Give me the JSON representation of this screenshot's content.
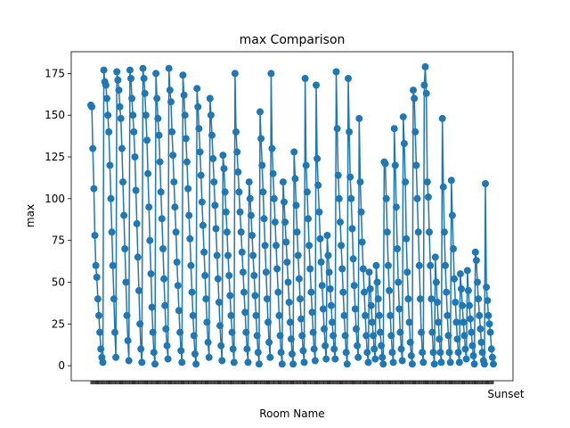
{
  "chart_data": {
    "type": "line",
    "title": "max Comparison",
    "xlabel": "Room Name",
    "ylabel": "max",
    "ylim": [
      -9,
      188
    ],
    "yticks": [
      0,
      25,
      50,
      75,
      100,
      125,
      150,
      175
    ],
    "grid": false,
    "legend": "none",
    "color": "#1f77b4",
    "category_count": 420,
    "last_category_label": "Sunset",
    "series": [
      {
        "values": [
          156,
          155,
          130,
          106,
          78,
          60,
          53,
          40,
          30,
          20,
          10,
          5,
          2,
          177,
          170,
          168,
          160,
          150,
          140,
          120,
          100,
          80,
          60,
          40,
          20,
          5,
          176,
          171,
          165,
          155,
          148,
          130,
          110,
          90,
          70,
          50,
          30,
          15,
          3,
          177,
          172,
          160,
          150,
          140,
          125,
          105,
          85,
          65,
          45,
          25,
          10,
          2,
          178,
          172,
          163,
          150,
          135,
          115,
          95,
          75,
          55,
          35,
          20,
          8,
          1,
          175,
          160,
          148,
          138,
          122,
          104,
          88,
          70,
          52,
          36,
          22,
          12,
          4,
          178,
          165,
          158,
          140,
          126,
          110,
          95,
          80,
          62,
          48,
          33,
          20,
          9,
          2,
          174,
          162,
          150,
          136,
          122,
          106,
          90,
          76,
          60,
          44,
          30,
          18,
          7,
          1,
          166,
          155,
          142,
          128,
          114,
          98,
          84,
          68,
          54,
          40,
          26,
          14,
          5,
          160,
          150,
          138,
          124,
          110,
          96,
          82,
          66,
          52,
          38,
          24,
          12,
          3,
          126,
          118,
          104,
          92,
          80,
          66,
          54,
          42,
          30,
          20,
          10,
          2,
          175,
          140,
          128,
          116,
          104,
          92,
          80,
          68,
          56,
          44,
          32,
          20,
          10,
          2,
          110,
          100,
          90,
          78,
          66,
          54,
          42,
          30,
          18,
          8,
          1,
          152,
          136,
          120,
          104,
          88,
          72,
          56,
          40,
          26,
          14,
          5,
          175,
          130,
          115,
          100,
          86,
          72,
          58,
          44,
          30,
          18,
          8,
          1,
          110,
          98,
          86,
          74,
          62,
          50,
          38,
          26,
          16,
          7,
          1,
          128,
          112,
          96,
          80,
          66,
          52,
          40,
          28,
          18,
          9,
          2,
          172,
          120,
          104,
          88,
          72,
          58,
          44,
          32,
          20,
          10,
          3,
          168,
          124,
          108,
          92,
          76,
          62,
          48,
          34,
          22,
          12,
          4,
          78,
          66,
          56,
          46,
          36,
          26,
          18,
          10,
          4,
          176,
          142,
          114,
          100,
          86,
          72,
          58,
          44,
          30,
          18,
          8,
          1,
          172,
          140,
          113,
          100,
          82,
          64,
          48,
          34,
          22,
          12,
          5,
          148,
          110,
          92,
          74,
          58,
          44,
          30,
          18,
          8,
          2,
          56,
          46,
          36,
          26,
          18,
          10,
          4,
          60,
          50,
          40,
          30,
          20,
          12,
          5,
          1,
          122,
          121,
          100,
          80,
          60,
          45,
          30,
          18,
          8,
          2,
          142,
          120,
          95,
          70,
          50,
          34,
          20,
          10,
          3,
          149,
          133,
          110,
          76,
          56,
          40,
          26,
          14,
          6,
          1,
          165,
          160,
          140,
          120,
          100,
          80,
          60,
          40,
          20,
          8,
          2,
          168,
          179,
          163,
          110,
          101,
          80,
          60,
          40,
          20,
          8,
          1,
          65,
          50,
          38,
          26,
          16,
          8,
          2,
          148,
          107,
          80,
          60,
          44,
          30,
          18,
          8,
          2,
          111,
          90,
          70,
          52,
          38,
          26,
          16,
          8,
          2,
          55,
          46,
          36,
          26,
          18,
          10,
          4,
          57,
          45,
          36,
          28,
          20,
          12,
          6,
          1,
          68,
          63,
          50,
          40,
          30,
          22,
          14,
          8,
          3,
          1,
          109,
          47,
          39,
          30,
          25,
          20,
          10,
          5,
          1
        ]
      }
    ]
  }
}
